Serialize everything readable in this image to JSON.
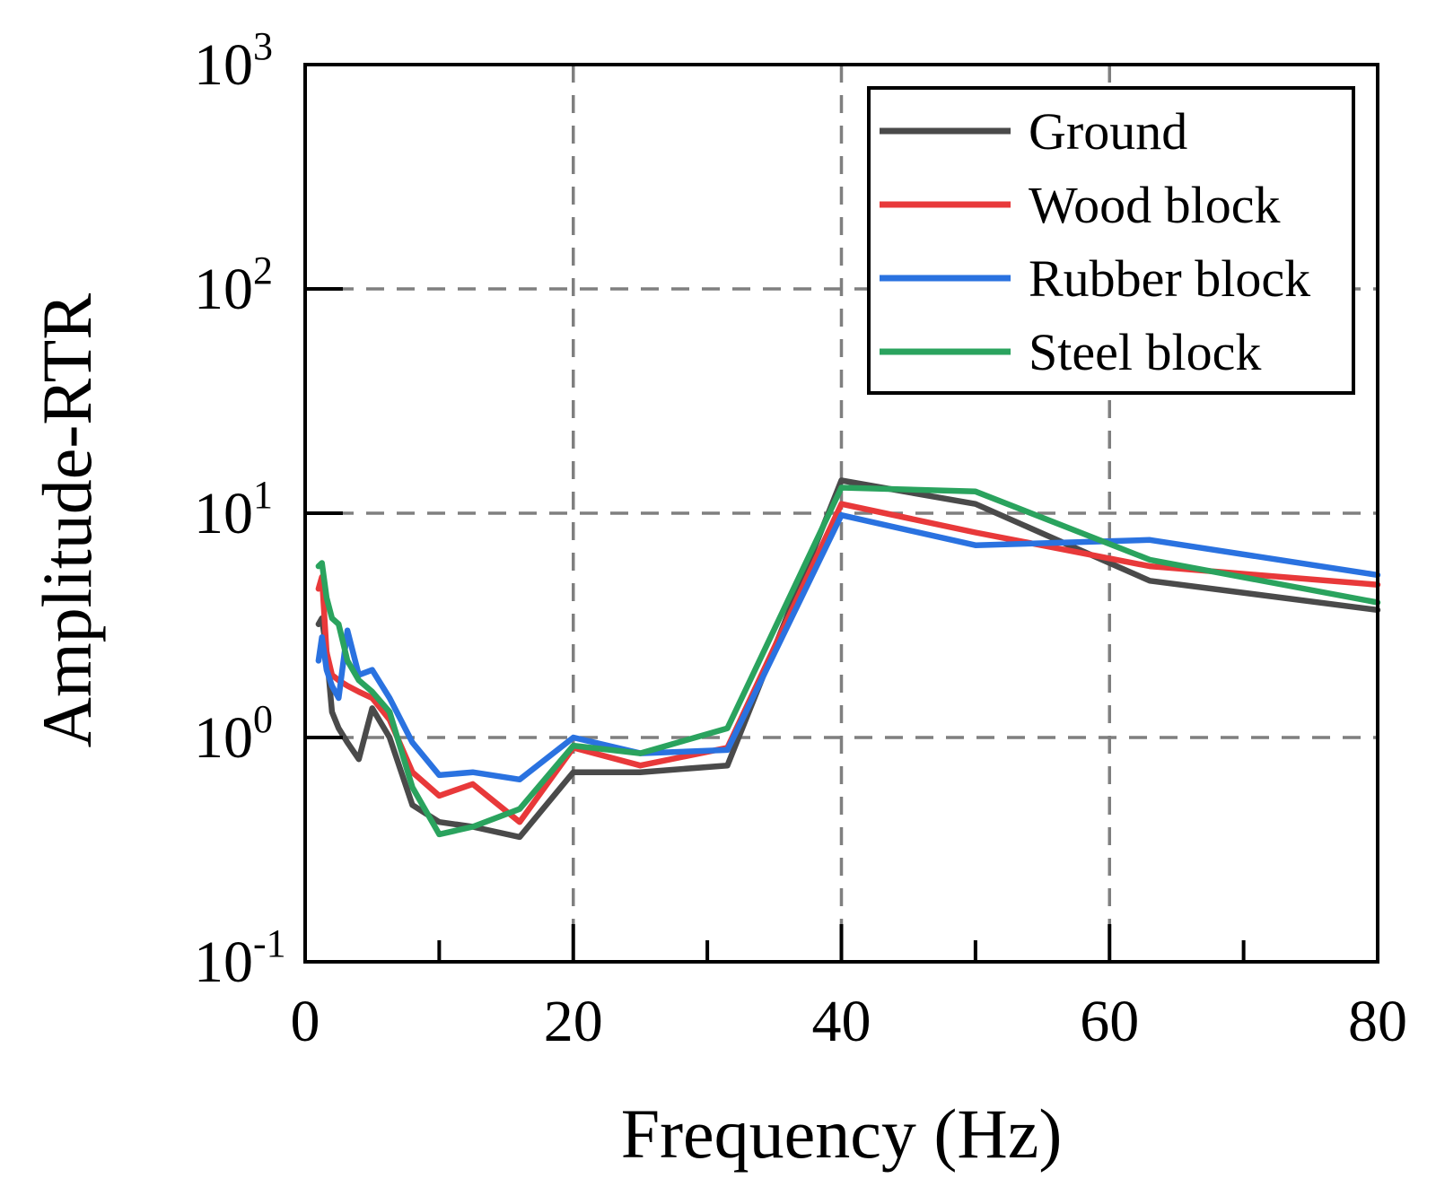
{
  "chart_data": {
    "type": "line",
    "title": "",
    "xlabel": "Frequency (Hz)",
    "ylabel": "Amplitude-RTR",
    "xlim": [
      0,
      80
    ],
    "ylim": [
      0.1,
      1000
    ],
    "yscale": "log",
    "grid": true,
    "legend_position": "top-right",
    "x_ticks": [
      0,
      20,
      40,
      60,
      80
    ],
    "x_tick_labels": [
      "0",
      "20",
      "40",
      "60",
      "80"
    ],
    "y_ticks": [
      {
        "value": 0.1,
        "base": "10",
        "exp": "-1"
      },
      {
        "value": 1,
        "base": "10",
        "exp": "0"
      },
      {
        "value": 10,
        "base": "10",
        "exp": "1"
      },
      {
        "value": 100,
        "base": "10",
        "exp": "2"
      },
      {
        "value": 1000,
        "base": "10",
        "exp": "3"
      }
    ],
    "series": [
      {
        "name": "Ground",
        "color": "#4a4a4a",
        "x": [
          1,
          1.25,
          1.6,
          2,
          2.5,
          3.15,
          4,
          5,
          6.3,
          8,
          10,
          12.5,
          16,
          20,
          25,
          31.5,
          40,
          50,
          63,
          80
        ],
        "y": [
          3.2,
          3.4,
          2.4,
          1.3,
          1.1,
          0.95,
          0.8,
          1.35,
          1.0,
          0.5,
          0.42,
          0.4,
          0.36,
          0.7,
          0.7,
          0.75,
          14,
          11,
          5,
          3.7
        ]
      },
      {
        "name": "Wood block",
        "color": "#e8393a",
        "x": [
          1,
          1.25,
          1.6,
          2,
          2.5,
          3.15,
          4,
          5,
          6.3,
          8,
          10,
          12.5,
          16,
          20,
          25,
          31.5,
          40,
          50,
          63,
          80
        ],
        "y": [
          4.6,
          5.2,
          2.4,
          1.9,
          1.8,
          1.7,
          1.6,
          1.5,
          1.2,
          0.7,
          0.55,
          0.62,
          0.42,
          0.9,
          0.75,
          0.9,
          11,
          8.2,
          5.8,
          4.8
        ]
      },
      {
        "name": "Rubber block",
        "color": "#2a72e0",
        "x": [
          1,
          1.25,
          1.6,
          2,
          2.5,
          3.15,
          4,
          5,
          6.3,
          8,
          10,
          12.5,
          16,
          20,
          25,
          31.5,
          40,
          50,
          63,
          80
        ],
        "y": [
          2.2,
          2.8,
          2.0,
          1.7,
          1.5,
          3.0,
          1.9,
          2.0,
          1.5,
          0.95,
          0.68,
          0.7,
          0.65,
          1.0,
          0.85,
          0.88,
          9.8,
          7.2,
          7.6,
          5.3
        ]
      },
      {
        "name": "Steel block",
        "color": "#2aa35e",
        "x": [
          1,
          1.25,
          1.6,
          2,
          2.5,
          3.15,
          4,
          5,
          6.3,
          8,
          10,
          12.5,
          16,
          20,
          25,
          31.5,
          40,
          50,
          63,
          80
        ],
        "y": [
          5.8,
          6.0,
          4.2,
          3.4,
          3.2,
          2.2,
          1.8,
          1.6,
          1.3,
          0.6,
          0.37,
          0.4,
          0.48,
          0.92,
          0.85,
          1.1,
          13,
          12.5,
          6.2,
          4.0
        ]
      }
    ]
  }
}
